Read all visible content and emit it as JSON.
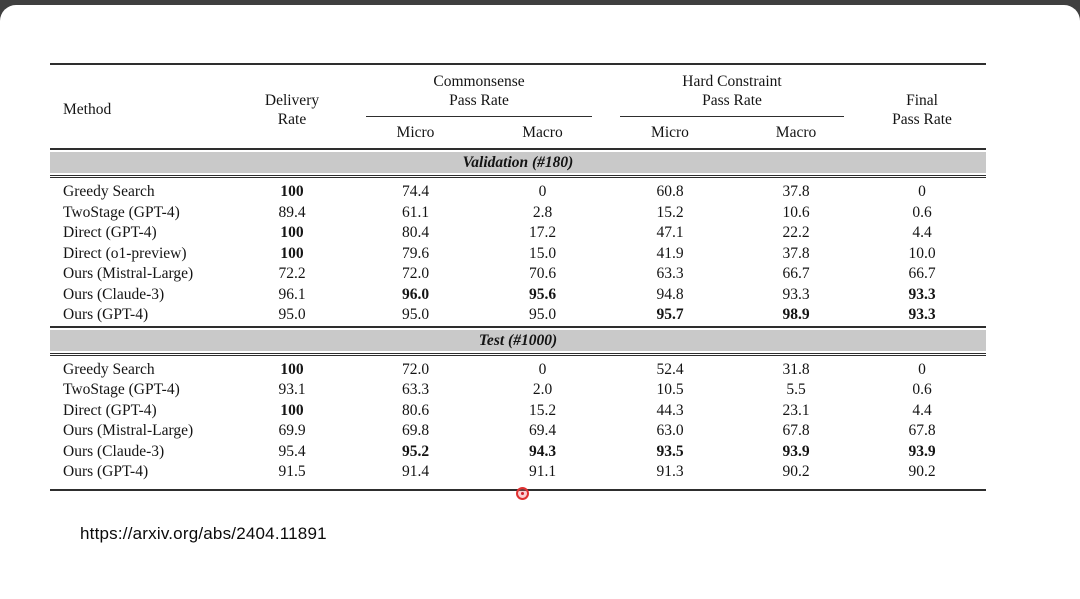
{
  "slide": {
    "frame_color": "#3f3f3f",
    "background": "#ffffff",
    "band_color": "#c9c9c9"
  },
  "table": {
    "col_headers": {
      "method": "Method",
      "delivery_rate": "Delivery\nRate",
      "commonsense": "Commonsense\nPass Rate",
      "hard_constraint": "Hard Constraint\nPass Rate",
      "final": "Final\nPass Rate",
      "micro": "Micro",
      "macro": "Macro"
    },
    "sections": [
      {
        "title": "Validation (#180)",
        "rows": [
          {
            "method": "Greedy Search",
            "values": [
              "100",
              "74.4",
              "0",
              "60.8",
              "37.8",
              "0"
            ],
            "bold": [
              true,
              false,
              false,
              false,
              false,
              false
            ]
          },
          {
            "method": "TwoStage (GPT-4)",
            "values": [
              "89.4",
              "61.1",
              "2.8",
              "15.2",
              "10.6",
              "0.6"
            ],
            "bold": [
              false,
              false,
              false,
              false,
              false,
              false
            ]
          },
          {
            "method": "Direct (GPT-4)",
            "values": [
              "100",
              "80.4",
              "17.2",
              "47.1",
              "22.2",
              "4.4"
            ],
            "bold": [
              true,
              false,
              false,
              false,
              false,
              false
            ]
          },
          {
            "method": "Direct (o1-preview)",
            "values": [
              "100",
              "79.6",
              "15.0",
              "41.9",
              "37.8",
              "10.0"
            ],
            "bold": [
              true,
              false,
              false,
              false,
              false,
              false
            ]
          },
          {
            "method": "Ours (Mistral-Large)",
            "values": [
              "72.2",
              "72.0",
              "70.6",
              "63.3",
              "66.7",
              "66.7"
            ],
            "bold": [
              false,
              false,
              false,
              false,
              false,
              false
            ]
          },
          {
            "method": "Ours (Claude-3)",
            "values": [
              "96.1",
              "96.0",
              "95.6",
              "94.8",
              "93.3",
              "93.3"
            ],
            "bold": [
              false,
              true,
              true,
              false,
              false,
              true
            ]
          },
          {
            "method": "Ours (GPT-4)",
            "values": [
              "95.0",
              "95.0",
              "95.0",
              "95.7",
              "98.9",
              "93.3"
            ],
            "bold": [
              false,
              false,
              false,
              true,
              true,
              true
            ]
          }
        ]
      },
      {
        "title": "Test (#1000)",
        "rows": [
          {
            "method": "Greedy Search",
            "values": [
              "100",
              "72.0",
              "0",
              "52.4",
              "31.8",
              "0"
            ],
            "bold": [
              true,
              false,
              false,
              false,
              false,
              false
            ]
          },
          {
            "method": "TwoStage (GPT-4)",
            "values": [
              "93.1",
              "63.3",
              "2.0",
              "10.5",
              "5.5",
              "0.6"
            ],
            "bold": [
              false,
              false,
              false,
              false,
              false,
              false
            ]
          },
          {
            "method": "Direct (GPT-4)",
            "values": [
              "100",
              "80.6",
              "15.2",
              "44.3",
              "23.1",
              "4.4"
            ],
            "bold": [
              true,
              false,
              false,
              false,
              false,
              false
            ]
          },
          {
            "method": "Ours (Mistral-Large)",
            "values": [
              "69.9",
              "69.8",
              "69.4",
              "63.0",
              "67.8",
              "67.8"
            ],
            "bold": [
              false,
              false,
              false,
              false,
              false,
              false
            ]
          },
          {
            "method": "Ours (Claude-3)",
            "values": [
              "95.4",
              "95.2",
              "94.3",
              "93.5",
              "93.9",
              "93.9"
            ],
            "bold": [
              false,
              true,
              true,
              true,
              true,
              true
            ]
          },
          {
            "method": "Ours (GPT-4)",
            "values": [
              "91.5",
              "91.4",
              "91.1",
              "91.3",
              "90.2",
              "90.2"
            ],
            "bold": [
              false,
              false,
              false,
              false,
              false,
              false
            ]
          }
        ]
      }
    ]
  },
  "footer": {
    "url": "https://arxiv.org/abs/2404.11891"
  },
  "pointer": {
    "color": "#e03131",
    "halo": "rgba(240,100,110,0.30)"
  }
}
